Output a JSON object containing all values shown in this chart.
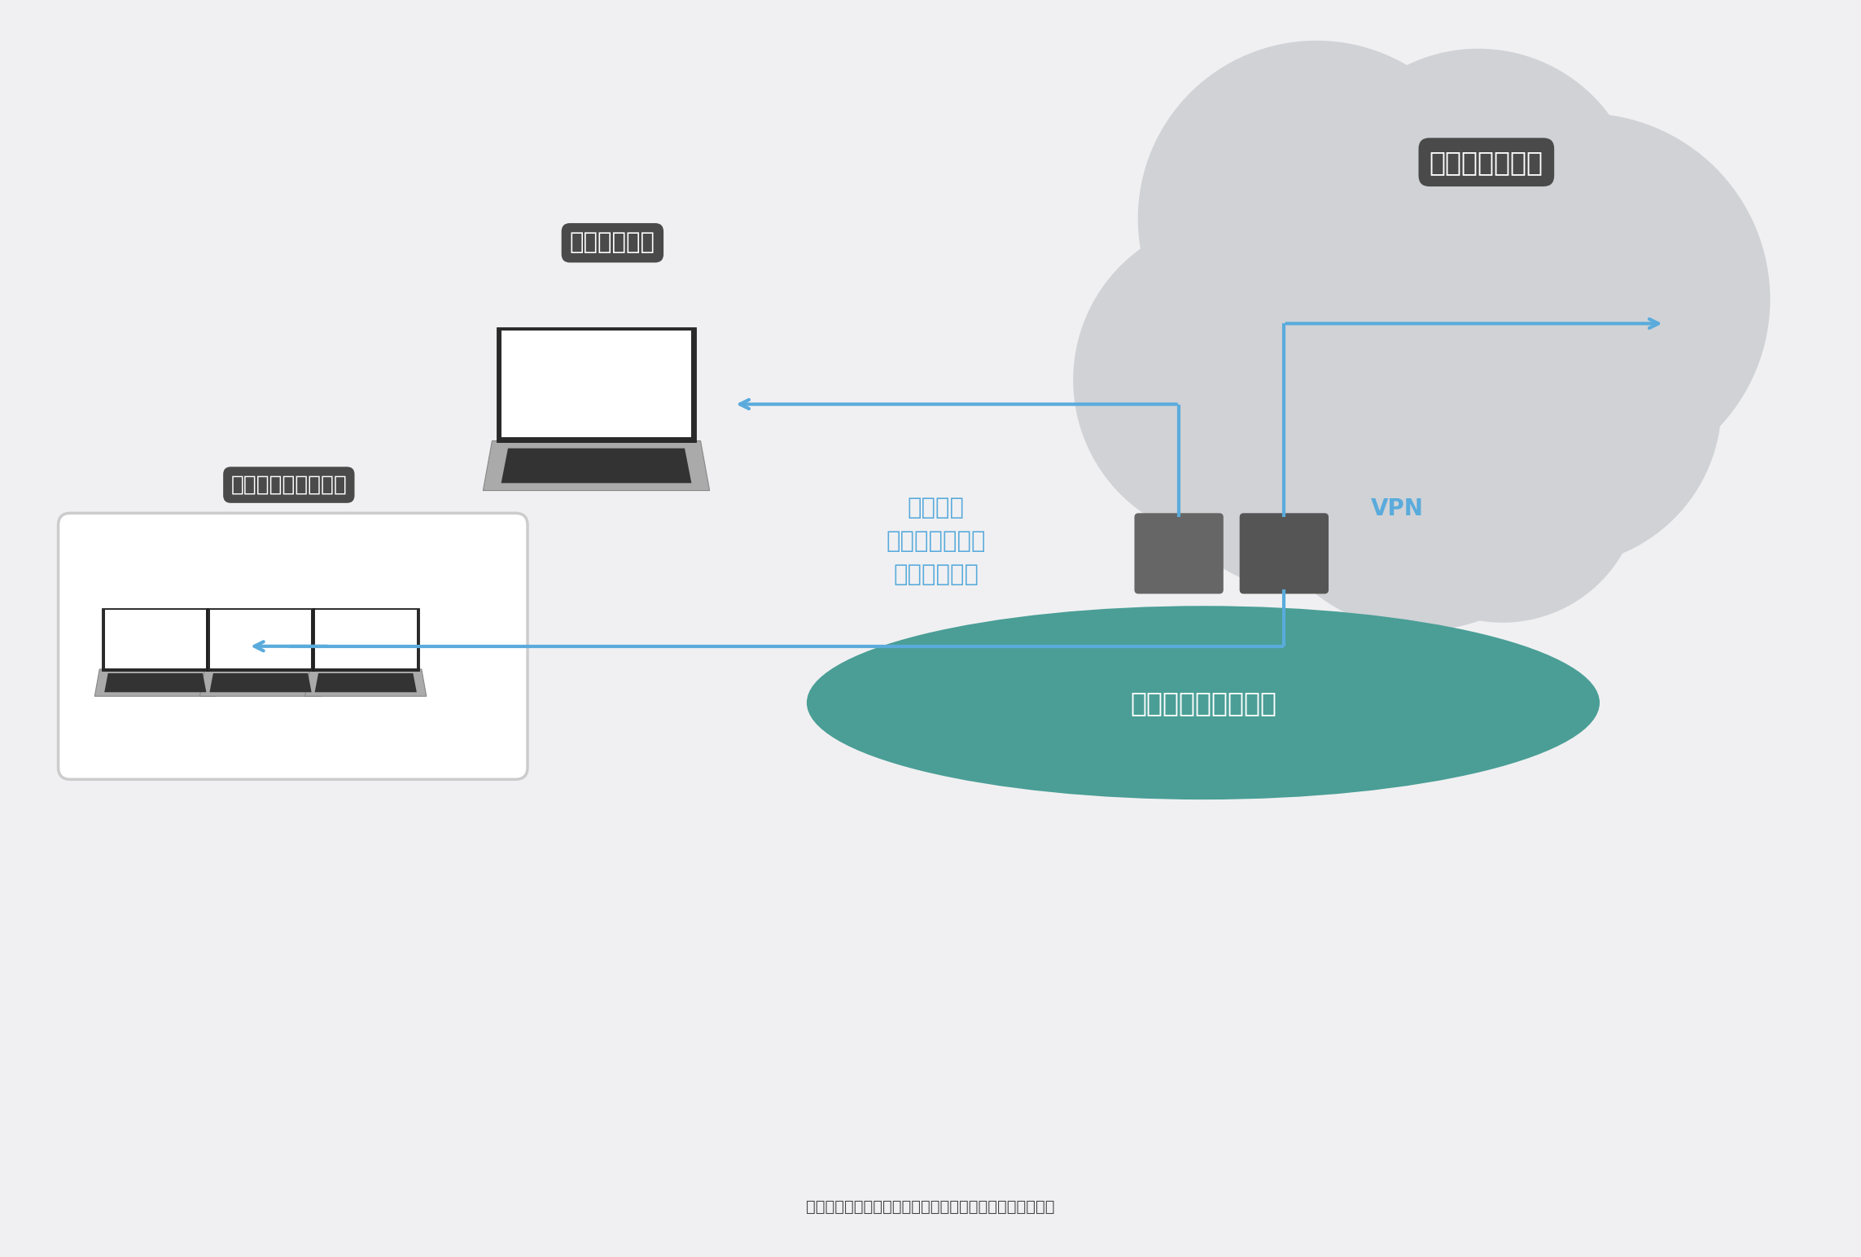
{
  "bg_color": "#f0f0f2",
  "cloud_color": "#d0d2d6",
  "internet_label": "インターネット",
  "mobile_label": "モバイル笹境",
  "secure_label": "セキュア\nインターネット\nゲートウェイ",
  "vpn_label": "VPN",
  "network_label": "専用回線（閉域網）",
  "office_label": "社内笹境（拠点等）",
  "label_bg": "#4a4a4a",
  "label_fg": "#ffffff",
  "arrow_color": "#5aabdc",
  "secure_color": "#5aabdc",
  "vpn_color": "#5aabdc",
  "network_fill": "#4a9e96",
  "network_text": "#ffffff",
  "device_color1": "#666666",
  "device_color2": "#555555",
  "screen_border": "#2a2a2a",
  "screen_white": "#ffffff",
  "keyboard_color": "#aaaaaa",
  "keyboard_dark": "#333333"
}
